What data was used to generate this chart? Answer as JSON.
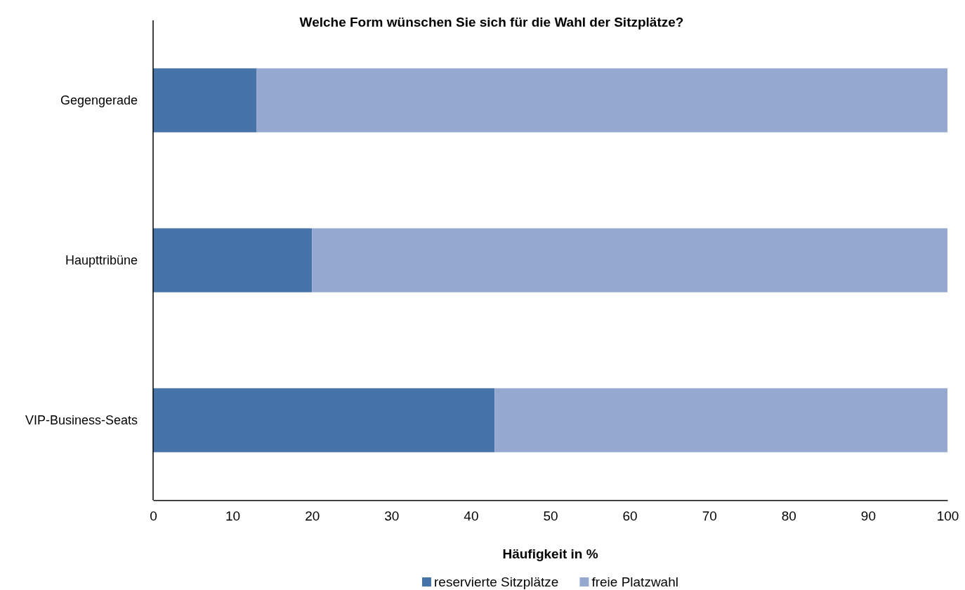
{
  "chart_data": {
    "type": "bar",
    "orientation": "horizontal",
    "stacked": true,
    "title": "Welche Form wünschen Sie sich für die Wahl der Sitzplätze?",
    "xlabel": "Häufigkeit in %",
    "categories": [
      "Gegengerade",
      "Haupttribüne",
      "VIP-Business-Seats"
    ],
    "series": [
      {
        "name": "reservierte Sitzplätze",
        "color": "#4674a8",
        "values": [
          13,
          20,
          43
        ]
      },
      {
        "name": "freie Platzwahl",
        "color": "#95a9d0",
        "values": [
          87,
          80,
          57
        ]
      }
    ],
    "xlim": [
      0,
      100
    ],
    "xticks": [
      0,
      10,
      20,
      30,
      40,
      50,
      60,
      70,
      80,
      90,
      100
    ],
    "grid": false,
    "legend": "bottom"
  }
}
